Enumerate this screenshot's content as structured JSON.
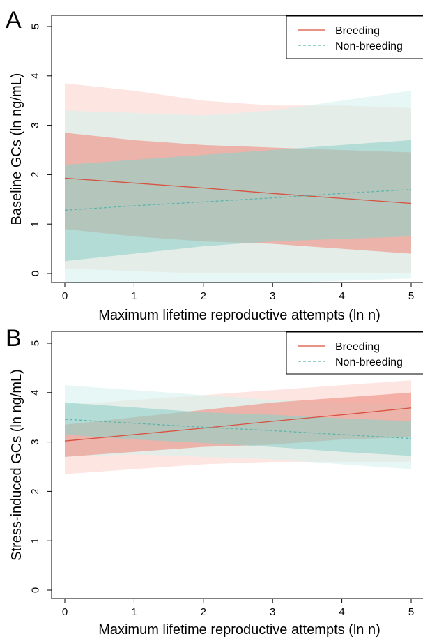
{
  "chart_data": [
    {
      "type": "line",
      "panel": "A",
      "xlabel": "Maximum lifetime reproductive attempts (ln n)",
      "ylabel": "Baseline GCs (ln ng/mL)",
      "xlim": [
        0,
        5
      ],
      "ylim": [
        0,
        5
      ],
      "xticks": [
        "0",
        "1",
        "2",
        "3",
        "4",
        "5"
      ],
      "yticks": [
        "0",
        "1",
        "2",
        "3",
        "4",
        "5"
      ],
      "legend_position": "top-right",
      "grid": false,
      "series": [
        {
          "name": "Breeding",
          "color": "#d9503f",
          "band_inner_color": "#ee8c80",
          "band_outer_color": "#fbd3cf",
          "linestyle": "solid",
          "x": [
            0,
            1,
            2,
            3,
            4,
            5
          ],
          "y": [
            1.93,
            1.83,
            1.73,
            1.62,
            1.52,
            1.42
          ],
          "inner_low": [
            0.9,
            0.75,
            0.65,
            0.6,
            0.5,
            0.4
          ],
          "inner_high": [
            2.85,
            2.7,
            2.6,
            2.55,
            2.5,
            2.45
          ],
          "outer_low": [
            0.1,
            0.05,
            0.0,
            0.0,
            0.0,
            0.0
          ],
          "outer_high": [
            3.85,
            3.7,
            3.5,
            3.4,
            3.4,
            3.35
          ]
        },
        {
          "name": "Non-breeding",
          "color": "#5ab5aa",
          "band_inner_color": "#8fd0c8",
          "band_outer_color": "#d6f1ee",
          "linestyle": "dashed",
          "x": [
            0,
            1,
            2,
            3,
            4,
            5
          ],
          "y": [
            1.28,
            1.37,
            1.45,
            1.53,
            1.62,
            1.7
          ],
          "inner_low": [
            0.25,
            0.4,
            0.55,
            0.65,
            0.7,
            0.75
          ],
          "inner_high": [
            2.2,
            2.3,
            2.4,
            2.5,
            2.6,
            2.7
          ],
          "outer_low": [
            -0.7,
            -0.5,
            -0.3,
            -0.2,
            -0.15,
            -0.1
          ],
          "outer_high": [
            3.3,
            3.25,
            3.2,
            3.3,
            3.5,
            3.7
          ]
        }
      ]
    },
    {
      "type": "line",
      "panel": "B",
      "xlabel": "Maximum lifetime reproductive attempts (ln n)",
      "ylabel": "Stress-induced GCs (ln ng/mL)",
      "xlim": [
        0,
        5
      ],
      "ylim": [
        0,
        5
      ],
      "xticks": [
        "0",
        "1",
        "2",
        "3",
        "4",
        "5"
      ],
      "yticks": [
        "0",
        "1",
        "2",
        "3",
        "4",
        "5"
      ],
      "legend_position": "top-right",
      "grid": false,
      "series": [
        {
          "name": "Breeding",
          "color": "#d9503f",
          "band_inner_color": "#ee8c80",
          "band_outer_color": "#fbd3cf",
          "linestyle": "solid",
          "x": [
            0,
            1,
            2,
            3,
            4,
            5
          ],
          "y": [
            3.02,
            3.15,
            3.28,
            3.42,
            3.55,
            3.69
          ],
          "inner_low": [
            2.7,
            2.8,
            2.9,
            2.95,
            3.05,
            3.1
          ],
          "inner_high": [
            3.35,
            3.5,
            3.65,
            3.8,
            3.9,
            4.0
          ],
          "outer_low": [
            2.35,
            2.45,
            2.55,
            2.6,
            2.6,
            2.6
          ],
          "outer_high": [
            3.75,
            3.85,
            3.95,
            4.05,
            4.15,
            4.25
          ]
        },
        {
          "name": "Non-breeding",
          "color": "#5ab5aa",
          "band_inner_color": "#8fd0c8",
          "band_outer_color": "#d6f1ee",
          "linestyle": "dashed",
          "x": [
            0,
            1,
            2,
            3,
            4,
            5
          ],
          "y": [
            3.46,
            3.38,
            3.3,
            3.23,
            3.15,
            3.07
          ],
          "inner_low": [
            3.15,
            3.05,
            2.98,
            2.9,
            2.8,
            2.72
          ],
          "inner_high": [
            3.8,
            3.7,
            3.6,
            3.55,
            3.48,
            3.42
          ],
          "outer_low": [
            2.7,
            2.75,
            2.7,
            2.65,
            2.55,
            2.45
          ],
          "outer_high": [
            4.15,
            4.05,
            3.95,
            3.85,
            3.8,
            3.75
          ]
        }
      ]
    }
  ]
}
